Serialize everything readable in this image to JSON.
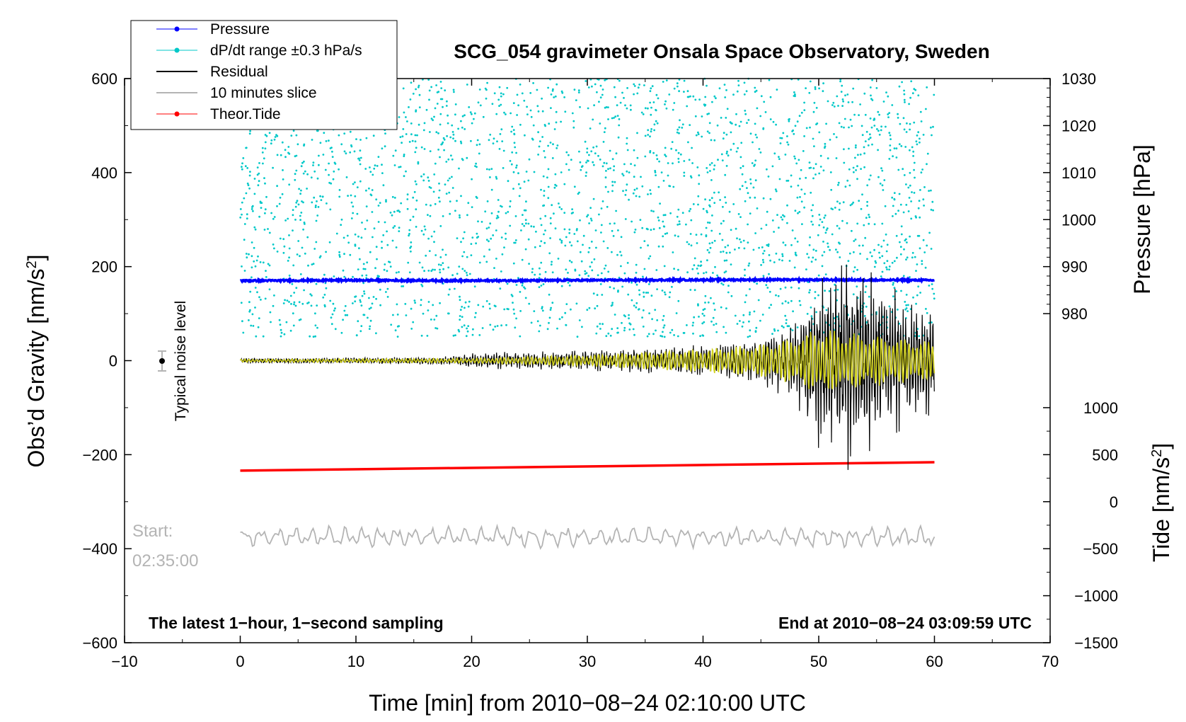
{
  "chart_data": {
    "type": "line",
    "title": "SCG_054 gravimeter Onsala Space Observatory, Sweden",
    "xlabel": "Time [min] from 2010−08−24 02:10:00 UTC",
    "ylabel_left": "Obs’d Gravity [nm/s²]",
    "ylabel_left_base": "Obs’d Gravity [nm/s",
    "ylabel_left_sup": "2",
    "ylabel_left_close": "]",
    "ylabel_pressure": "Pressure [hPa]",
    "ylabel_tide": "Tide [nm/s²]",
    "ylabel_tide_base": "Tide [nm/s",
    "ylabel_tide_sup": "2",
    "ylabel_tide_close": "]",
    "xlim": [
      -10,
      70
    ],
    "ylim_left": [
      -600,
      600
    ],
    "x_ticks": [
      "−10",
      "0",
      "10",
      "20",
      "30",
      "40",
      "50",
      "60",
      "70"
    ],
    "x_tick_values": [
      -10,
      0,
      10,
      20,
      30,
      40,
      50,
      60,
      70
    ],
    "y_ticks_left": [
      "600",
      "400",
      "200",
      "0",
      "−200",
      "−400",
      "−600"
    ],
    "y_tick_values_left": [
      600,
      400,
      200,
      0,
      -200,
      -400,
      -600
    ],
    "pressure_ticks": [
      "1030",
      "1020",
      "1010",
      "1000",
      "990",
      "980"
    ],
    "pressure_tick_values": [
      1030,
      1020,
      1010,
      1000,
      990,
      980
    ],
    "tide_ticks": [
      "1000",
      "500",
      "0",
      "−500",
      "−1000",
      "−1500"
    ],
    "tide_tick_values": [
      1000,
      500,
      0,
      -500,
      -1000,
      -1500
    ],
    "legend": [
      {
        "label": "Pressure",
        "color": "#0000ff",
        "marker": true
      },
      {
        "label": "dP/dt range ±0.3 hPa/s",
        "color": "#00c8c8",
        "marker": true
      },
      {
        "label": "Residual",
        "color": "#000000",
        "marker": false
      },
      {
        "label": "10 minutes slice",
        "color": "#b4b4b4",
        "marker": false
      },
      {
        "label": "Theor.Tide",
        "color": "#ff0000",
        "marker": true
      }
    ],
    "series": [
      {
        "name": "Pressure",
        "color": "#0000ff",
        "axis": "pressure",
        "x": [
          0,
          10,
          20,
          30,
          40,
          50,
          60
        ],
        "values": [
          987.0,
          987.1,
          987.0,
          987.1,
          987.2,
          987.2,
          987.1
        ]
      },
      {
        "name": "Theor.Tide",
        "color": "#ff0000",
        "axis": "tide",
        "x": [
          0,
          60
        ],
        "values": [
          330,
          420
        ]
      },
      {
        "name": "Residual",
        "color": "#000000",
        "axis": "gravity",
        "envelope_x": [
          0,
          10,
          18,
          20,
          30,
          40,
          45,
          48,
          50,
          52,
          53,
          55,
          58,
          60
        ],
        "envelope_amp": [
          5,
          6,
          8,
          15,
          20,
          30,
          45,
          80,
          160,
          210,
          200,
          160,
          120,
          100
        ]
      },
      {
        "name": "Residual (filtered)",
        "color": "#d2d21e",
        "axis": "gravity",
        "envelope_x": [
          0,
          20,
          30,
          40,
          45,
          48,
          50,
          53,
          60
        ],
        "envelope_amp": [
          3,
          5,
          12,
          25,
          35,
          50,
          70,
          60,
          40
        ]
      },
      {
        "name": "10 minutes slice",
        "color": "#b4b4b4",
        "axis": "gravity",
        "x_range": [
          0,
          60
        ],
        "baseline": -375,
        "amplitude": 20
      },
      {
        "name": "dP/dt range ±0.3 hPa/s",
        "color": "#00c8c8",
        "axis": "pressure",
        "x_range": [
          0,
          60
        ],
        "range": [
          975,
          1030
        ]
      }
    ],
    "noise_marker": {
      "x": -7,
      "y": 0,
      "err": 20,
      "label": "Typical noise level"
    },
    "slice_start_label": "Start:",
    "slice_start_time": "02:35:00",
    "note_left": "The latest 1−hour, 1−second sampling",
    "note_right": "End at 2010−08−24 03:09:59 UTC"
  }
}
